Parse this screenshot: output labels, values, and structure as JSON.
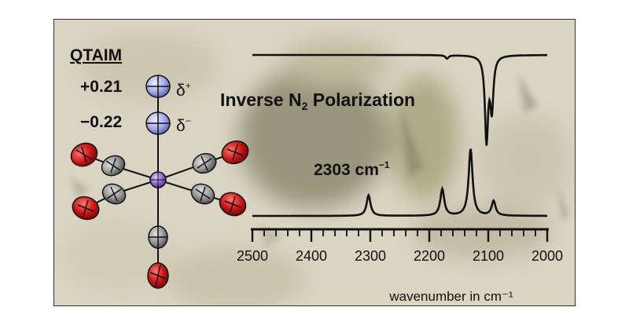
{
  "qtaim": {
    "title": "QTAIM",
    "charge_terminal": "+0.21",
    "charge_bound": "−0.22",
    "delta_symbol": "δ",
    "delta_plus_sign": "+",
    "delta_minus_sign": "−"
  },
  "headline": {
    "prefix": "Inverse N",
    "subscript": "2",
    "suffix": " Polarization"
  },
  "annotation": {
    "value": "2303 cm",
    "superscript": "−1"
  },
  "chart_data": {
    "type": "line",
    "title": "",
    "xlabel": "wavenumber in cm⁻¹",
    "ylabel": "",
    "xlim": [
      2500,
      2000
    ],
    "x_reversed": true,
    "x_ticks": [
      2500,
      2400,
      2300,
      2200,
      2100,
      2000
    ],
    "x_tick_labels": [
      "2500",
      "2400",
      "2300",
      "2200",
      "2100",
      "2000"
    ],
    "grid": false,
    "series": [
      {
        "kind": "absorption (top trace, peaks point down)",
        "baseline": 0,
        "peaks": [
          {
            "x": 2170,
            "depth": 0.04
          },
          {
            "x": 2103,
            "depth": 1.0
          },
          {
            "x": 2094,
            "depth": 0.62
          }
        ]
      },
      {
        "kind": "emission (bottom trace, peaks point up)",
        "baseline": 0,
        "peaks": [
          {
            "x": 2303,
            "height": 0.31
          },
          {
            "x": 2178,
            "height": 0.4
          },
          {
            "x": 2130,
            "height": 1.0
          },
          {
            "x": 2091,
            "height": 0.22
          }
        ]
      }
    ],
    "annotations": [
      {
        "x": 2303,
        "text": "2303 cm⁻¹"
      }
    ]
  },
  "colors": {
    "background": "#d8d2bd",
    "trace": "#111111",
    "oxygen": "#d01818",
    "carbon": "#9a9a9a",
    "nitrogen": "#a8aef0",
    "metal": "#9a68d8"
  },
  "molecule": {
    "description_icons": [
      "nitrogen-atom-icon",
      "carbon-atom-icon",
      "oxygen-atom-icon",
      "metal-atom-icon"
    ]
  }
}
